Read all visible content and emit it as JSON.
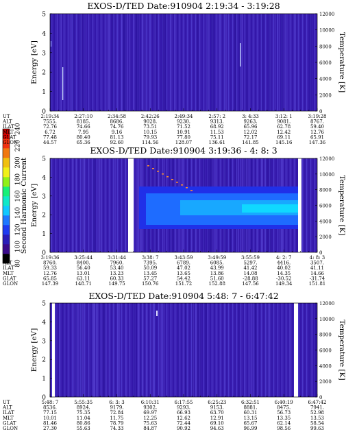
{
  "colorbar": {
    "label": "Second Harmonic Current",
    "ticks": [
      "240",
      "220",
      "200",
      "180",
      "160",
      "140",
      "120",
      "100",
      "80"
    ],
    "colors": [
      "#000000",
      "#3a0a8a",
      "#2a1db8",
      "#1f3cf0",
      "#1e78ff",
      "#10c8ff",
      "#10e8c8",
      "#18f078",
      "#90f018",
      "#f0f018",
      "#f0c010",
      "#f07810",
      "#f03010",
      "#d00000"
    ]
  },
  "chart_data": [
    {
      "type": "heatmap",
      "title": "EXOS-D/TED   Date:910904  2:19:34 - 3:19:28",
      "ylabel": "Energy [eV]",
      "y2label": "Temperature [K]",
      "ylim": [
        0,
        5
      ],
      "y2lim": [
        0,
        12000
      ],
      "yticks": [
        "0",
        "1",
        "2",
        "3",
        "4",
        "5"
      ],
      "y2ticks": [
        "0",
        "2000",
        "4000",
        "6000",
        "8000",
        "10000",
        "12000"
      ],
      "row_labels": [
        "UT",
        "ALT",
        "ILAT",
        "MLT",
        "GLAT",
        "GLON"
      ],
      "columns": [
        [
          "2:19:34",
          "7555.",
          "72.76",
          "6.72",
          "77.48",
          "44.57"
        ],
        [
          "2:27:10",
          "8185.",
          "74.66",
          "7.95",
          "80.40",
          "65.36"
        ],
        [
          "2:34:58",
          "8686.",
          "74.76",
          "9.16",
          "81.13",
          "92.60"
        ],
        [
          "2:42:26",
          "9028.",
          "73.51",
          "10.15",
          "79.93",
          "114.56"
        ],
        [
          "2:49:34",
          "9230.",
          "71.52",
          "10.91",
          "77.80",
          "128.07"
        ],
        [
          "2:57: 2",
          "9313.",
          "68.92",
          "11.53",
          "75.11",
          "136.61"
        ],
        [
          "3: 4:33",
          "9263.",
          "65.96",
          "12.02",
          "72.17",
          "141.85"
        ],
        [
          "3:12: 1",
          "9081.",
          "62.78",
          "12.42",
          "69.11",
          "145.16"
        ],
        [
          "3:19:28",
          "8767.",
          "59.40",
          "12.76",
          "65.91",
          "147.36"
        ]
      ]
    },
    {
      "type": "heatmap",
      "title": "EXOS-D/TED   Date:910904  3:19:36 - 4: 8: 3",
      "ylabel": "Energy [eV]",
      "y2label": "Temperature [K]",
      "ylim": [
        0,
        5
      ],
      "y2lim": [
        0,
        12000
      ],
      "yticks": [
        "0",
        "1",
        "2",
        "3",
        "4",
        "5"
      ],
      "y2ticks": [
        "0",
        "2000",
        "4000",
        "6000",
        "8000",
        "10000",
        "12000"
      ],
      "row_labels": [
        "UT",
        "ALT",
        "ILAT",
        "MLT",
        "GLAT",
        "GLON"
      ],
      "columns": [
        [
          "3:19:36",
          "8760.",
          "59.33",
          "12.76",
          "65.85",
          "147.39"
        ],
        [
          "3:25:44",
          "8400.",
          "56.40",
          "13.01",
          "63.11",
          "148.71"
        ],
        [
          "3:31:44",
          "7960.",
          "53.40",
          "13.23",
          "60.33",
          "149.75"
        ],
        [
          "3:38: 7",
          "7395.",
          "50.09",
          "13.45",
          "57.27",
          "150.76"
        ],
        [
          "3:43:59",
          "6789.",
          "47.02",
          "13.65",
          "54.42",
          "151.72"
        ],
        [
          "3:49:59",
          "6085.",
          "43.99",
          "13.86",
          "51.60",
          "152.88"
        ],
        [
          "3:55:59",
          "5297.",
          "41.42",
          "14.08",
          "-28.88",
          "147.56"
        ],
        [
          "4: 2: 7",
          "4416.",
          "40.02",
          "14.35",
          "-30.52",
          "149.34"
        ],
        [
          "4: 8: 3",
          "3507.",
          "41.11",
          "14.66",
          "-31.74",
          "151.81"
        ]
      ]
    },
    {
      "type": "heatmap",
      "title": "EXOS-D/TED   Date:910904  5:48: 7 - 6:47:42",
      "ylabel": "Energy [eV]",
      "y2label": "Temperature [K]",
      "ylim": [
        0,
        5
      ],
      "y2lim": [
        0,
        12000
      ],
      "yticks": [
        "0",
        "1",
        "2",
        "3",
        "4",
        "5"
      ],
      "y2ticks": [
        "0",
        "2000",
        "4000",
        "6000",
        "8000",
        "10000",
        "12000"
      ],
      "row_labels": [
        "UT",
        "ALT",
        "ILAT",
        "MLT",
        "GLAT",
        "GLON"
      ],
      "columns": [
        [
          "5:48: 7",
          "8536.",
          "77.15",
          "10.01",
          "81.46",
          "27.30"
        ],
        [
          "5:55:35",
          "8924.",
          "75.35",
          "11.04",
          "80.86",
          "55.63"
        ],
        [
          "6: 3: 3",
          "9179.",
          "72.84",
          "11.75",
          "78.79",
          "74.33"
        ],
        [
          "6:10:31",
          "9302.",
          "69.97",
          "12.25",
          "75.63",
          "84.87"
        ],
        [
          "6:17:55",
          "9293.",
          "66.93",
          "12.62",
          "72.44",
          "90.92"
        ],
        [
          "6:25:23",
          "9153.",
          "63.70",
          "12.91",
          "69.10",
          "94.63"
        ],
        [
          "6:32:51",
          "8881.",
          "60.31",
          "13.15",
          "65.67",
          "96.99"
        ],
        [
          "6:40:19",
          "8475.",
          "56.73",
          "13.35",
          "62.14",
          "98.56"
        ],
        [
          "6:47:42",
          "7941.",
          "52.98",
          "13.53",
          "58.54",
          "99.63"
        ]
      ]
    }
  ]
}
